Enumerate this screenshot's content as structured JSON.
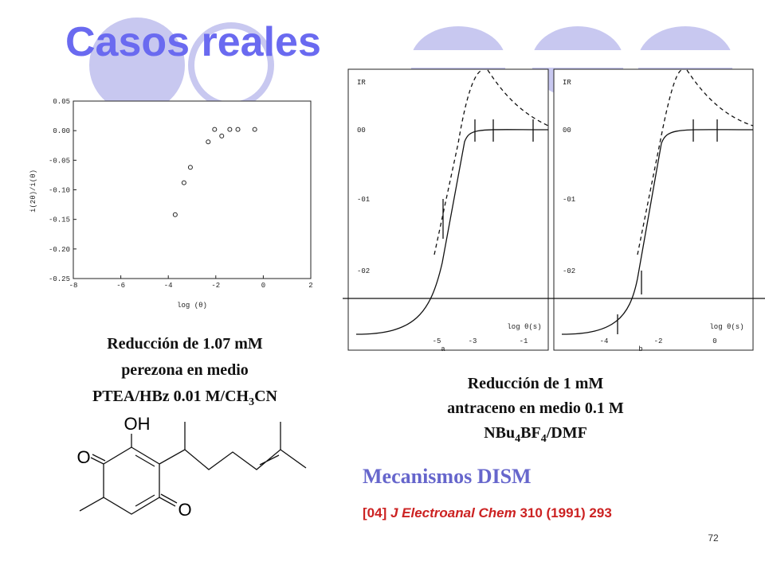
{
  "slide": {
    "title": "Casos reales",
    "left_plot": {
      "y_label": "i(2θ)/i(θ)",
      "x_label": "log (θ)",
      "xlim": [
        -8,
        2
      ],
      "ylim": [
        -0.25,
        0.05
      ],
      "xticks": [
        -8,
        -6,
        -4,
        -2,
        0,
        2
      ],
      "yticks": [
        {
          "value": 0.05,
          "label": "0.05"
        },
        {
          "value": 0,
          "label": "0.00"
        },
        {
          "value": -0.05,
          "label": "-0.05"
        },
        {
          "value": -0.1,
          "label": "-0.10"
        },
        {
          "value": -0.15,
          "label": "-0.15"
        },
        {
          "value": -0.2,
          "label": "-0.20"
        },
        {
          "value": -0.25,
          "label": "-0.25"
        }
      ],
      "x": [
        -3.71,
        -3.34,
        -3.07,
        -2.32,
        -2.05,
        -1.75,
        -1.41,
        -1.07,
        -0.36
      ],
      "values": [
        -0.142,
        -0.088,
        -0.062,
        -0.019,
        0.002,
        -0.009,
        0.002,
        0.002,
        0.002
      ]
    },
    "left_caption": {
      "line1": "Reducción de 1.07 mM",
      "line2": "perezona en medio",
      "line3": [
        "PTEA/HBz 0.01 M/CH",
        "3",
        "CN"
      ]
    },
    "molecule": {
      "oh": "OH",
      "o1": "O",
      "o2": "O"
    },
    "panel_a": {
      "top": "IR",
      "yticks": [
        "00",
        "-01",
        "-02"
      ],
      "xticks": [
        "-5",
        "-3",
        "-1"
      ],
      "x_label": "log θ(s)",
      "letter": "a"
    },
    "panel_b": {
      "top": "IR",
      "yticks": [
        "00",
        "-01",
        "-02"
      ],
      "xticks": [
        "-4",
        "-2",
        "0"
      ],
      "x_label": "log θ(s)",
      "letter": "b"
    },
    "right_caption": {
      "line1": "Reducción de 1 mM",
      "line2": "antraceno en medio 0.1 M",
      "line3": [
        "NBu",
        "4",
        "BF",
        "4",
        "/DMF"
      ]
    },
    "mechanism": "Mecanismos DISM",
    "reference": [
      "[04] ",
      "J Electroanal Chem",
      " 310 (1991) 293"
    ],
    "page_number": "72"
  }
}
